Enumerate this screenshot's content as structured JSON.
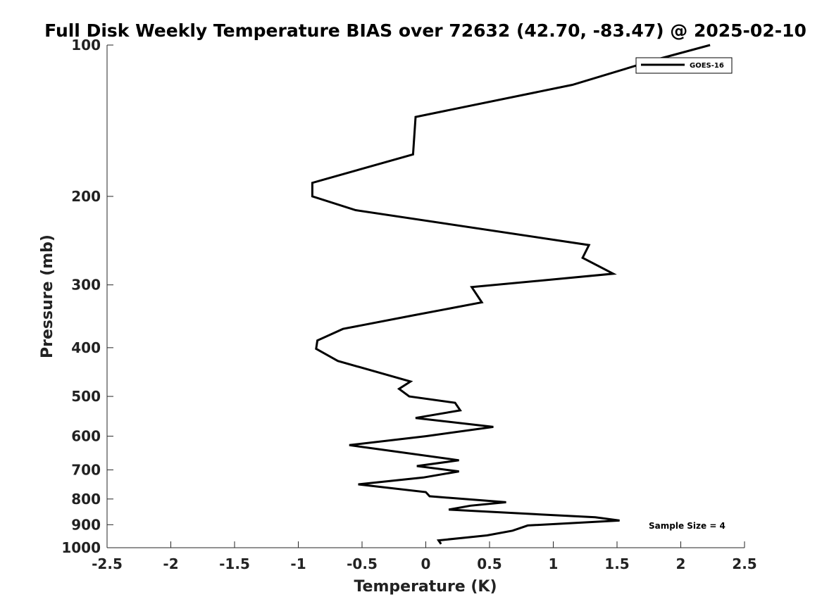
{
  "chart_data": {
    "type": "line",
    "title": "Full Disk Weekly Temperature BIAS over 72632 (42.70, -83.47) @ 2025-02-10",
    "xlabel": "Temperature (K)",
    "ylabel": "Pressure (mb)",
    "xlim": [
      -2.5,
      2.5
    ],
    "ylim": [
      1000,
      100
    ],
    "yscale": "log",
    "x_ticks": [
      -2.5,
      -2,
      -1.5,
      -1,
      -0.5,
      0,
      0.5,
      1,
      1.5,
      2,
      2.5
    ],
    "x_tick_labels": [
      "-2.5",
      "-2",
      "-1.5",
      "-1",
      "-0.5",
      "0",
      "0.5",
      "1",
      "1.5",
      "2",
      "2.5"
    ],
    "y_ticks": [
      100,
      200,
      300,
      400,
      500,
      600,
      700,
      800,
      900,
      1000
    ],
    "y_tick_labels": [
      "100",
      "200",
      "300",
      "400",
      "500",
      "600",
      "700",
      "800",
      "900",
      "1000"
    ],
    "legend": {
      "position": "top-right",
      "entries": [
        "GOES-16"
      ]
    },
    "annotation": "Sample Size = 4",
    "series": [
      {
        "name": "GOES-16",
        "color": "#000000",
        "points": [
          {
            "t": 2.23,
            "p": 100
          },
          {
            "t": 1.8,
            "p": 107
          },
          {
            "t": 1.15,
            "p": 120
          },
          {
            "t": -0.08,
            "p": 139
          },
          {
            "t": -0.1,
            "p": 165
          },
          {
            "t": -0.89,
            "p": 188
          },
          {
            "t": -0.89,
            "p": 200
          },
          {
            "t": -0.55,
            "p": 213
          },
          {
            "t": 1.28,
            "p": 250
          },
          {
            "t": 1.23,
            "p": 265
          },
          {
            "t": 1.47,
            "p": 285
          },
          {
            "t": 0.36,
            "p": 303
          },
          {
            "t": 0.44,
            "p": 325
          },
          {
            "t": -0.1,
            "p": 345
          },
          {
            "t": -0.65,
            "p": 367
          },
          {
            "t": -0.85,
            "p": 387
          },
          {
            "t": -0.86,
            "p": 402
          },
          {
            "t": -0.69,
            "p": 425
          },
          {
            "t": -0.12,
            "p": 467
          },
          {
            "t": -0.21,
            "p": 483
          },
          {
            "t": -0.13,
            "p": 500
          },
          {
            "t": 0.23,
            "p": 515
          },
          {
            "t": 0.27,
            "p": 533
          },
          {
            "t": -0.08,
            "p": 552
          },
          {
            "t": 0.53,
            "p": 575
          },
          {
            "t": 0.0,
            "p": 600
          },
          {
            "t": -0.6,
            "p": 625
          },
          {
            "t": 0.26,
            "p": 670
          },
          {
            "t": -0.07,
            "p": 688
          },
          {
            "t": 0.26,
            "p": 705
          },
          {
            "t": -0.02,
            "p": 725
          },
          {
            "t": -0.53,
            "p": 748
          },
          {
            "t": 0.0,
            "p": 775
          },
          {
            "t": 0.03,
            "p": 790
          },
          {
            "t": 0.63,
            "p": 812
          },
          {
            "t": 0.35,
            "p": 825
          },
          {
            "t": 0.18,
            "p": 840
          },
          {
            "t": 1.33,
            "p": 870
          },
          {
            "t": 1.52,
            "p": 883
          },
          {
            "t": 0.8,
            "p": 903
          },
          {
            "t": 0.68,
            "p": 925
          },
          {
            "t": 0.48,
            "p": 945
          },
          {
            "t": 0.1,
            "p": 967
          },
          {
            "t": 0.12,
            "p": 983
          }
        ]
      }
    ]
  }
}
